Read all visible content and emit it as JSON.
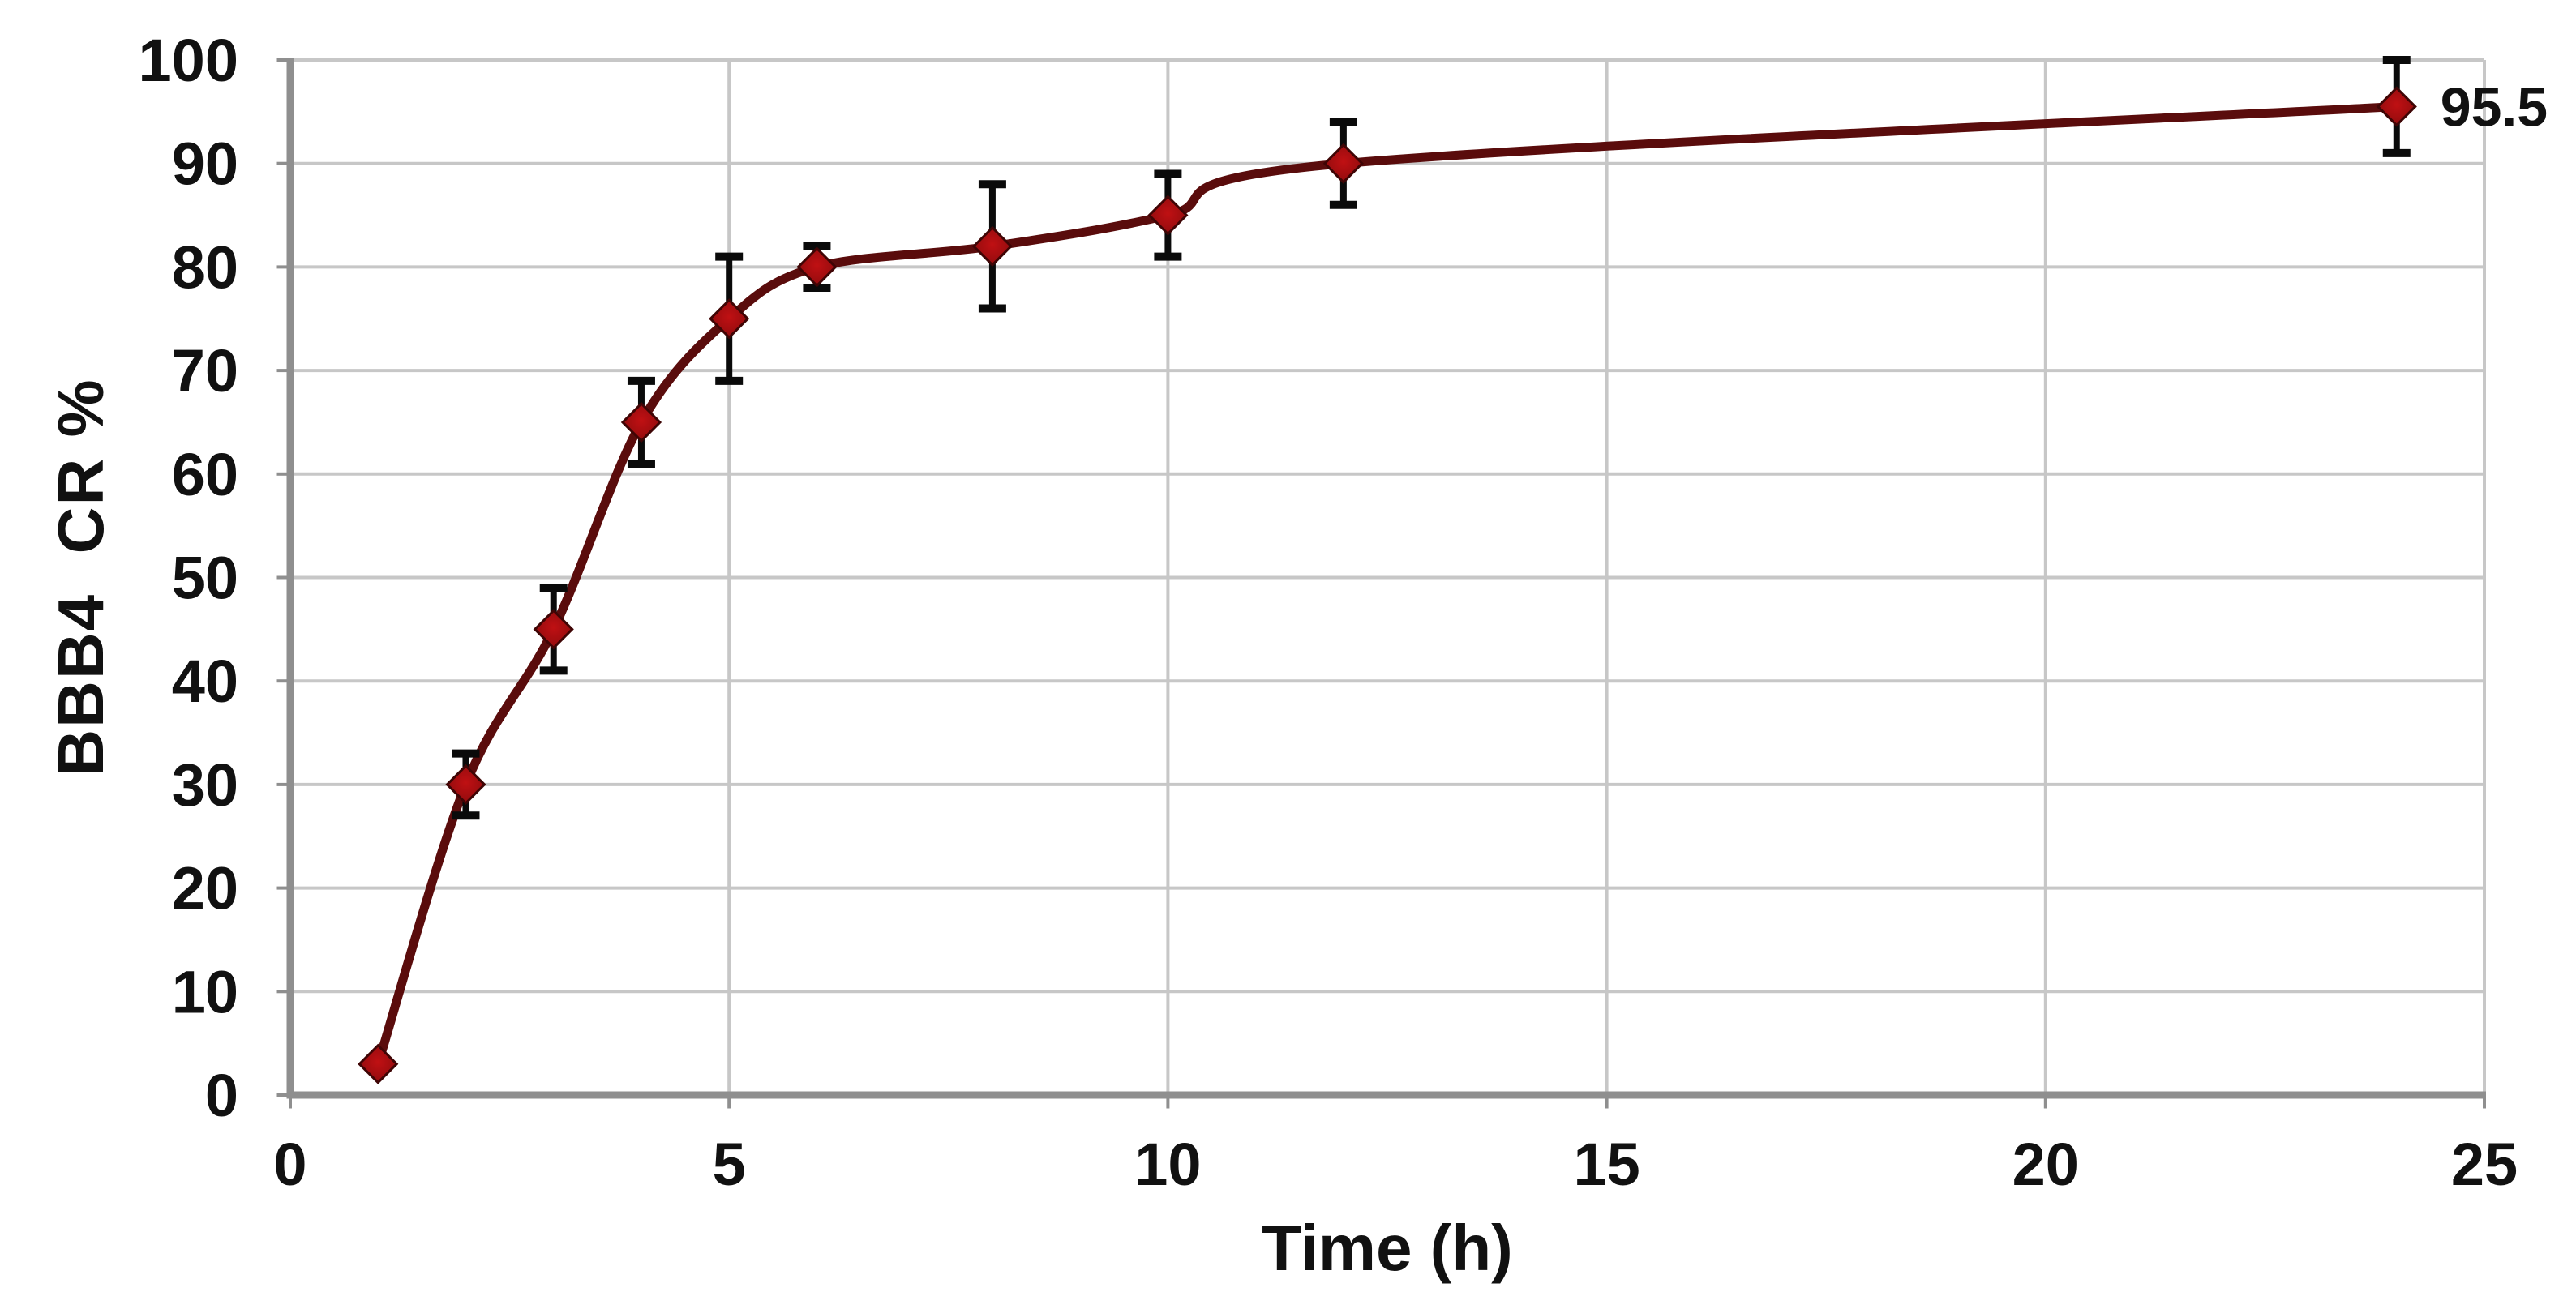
{
  "colors": {
    "background": "#ffffff",
    "gridline": "#c7c7c7",
    "axis_line": "#8f8f8f",
    "series_line": "#5a0c0c",
    "marker_fill_center": "#c01013",
    "marker_fill_edge": "#8a0b0d",
    "marker_stroke": "#3f0505",
    "error_bar": "#0a0a0a",
    "text": "#111111"
  },
  "chart_data": {
    "type": "line",
    "title": "",
    "xlabel": "Time (h)",
    "ylabel": "BBB4  CR %",
    "series_name": "BBB4 CR %",
    "x": [
      1,
      2,
      3,
      4,
      5,
      6,
      8,
      10,
      12,
      24
    ],
    "y": [
      3,
      30,
      45,
      65,
      75,
      80,
      82,
      85,
      90,
      95.5
    ],
    "y_err": [
      0,
      3,
      4,
      4,
      6,
      2,
      6,
      4,
      4,
      4.5
    ],
    "x_ticks": [
      0,
      5,
      10,
      15,
      20,
      25
    ],
    "y_ticks": [
      0,
      10,
      20,
      30,
      40,
      50,
      60,
      70,
      80,
      90,
      100
    ],
    "xlim": [
      0,
      25
    ],
    "ylim": [
      0,
      100
    ],
    "grid": true,
    "legend": "none",
    "marker": "diamond",
    "line_style": "smooth",
    "error_bars": true,
    "annotations": [
      {
        "text": "95.5",
        "x": 24,
        "y": 95.5,
        "placement": "right"
      }
    ]
  }
}
